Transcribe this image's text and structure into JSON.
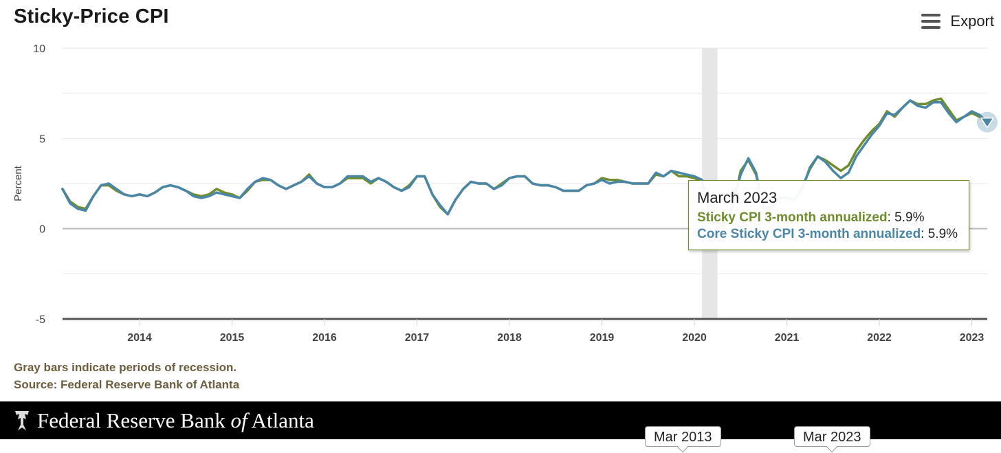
{
  "title": "Sticky-Price CPI",
  "export_label": "Export",
  "notes": {
    "recession": "Gray bars indicate periods of recession.",
    "source": "Source: Federal Reserve Bank of Atlanta"
  },
  "footer": {
    "bank_part1": "Federal Reserve Bank ",
    "bank_of": "of",
    "bank_part2": " Atlanta"
  },
  "navigator": {
    "start_label": "Mar 2013",
    "end_label": "Mar 2023"
  },
  "tooltip": {
    "title": "March 2023",
    "series1_name": "Sticky CPI 3-month annualized",
    "series1_value": "5.9%",
    "series2_name": "Core Sticky CPI 3-month annualized",
    "series2_value": "5.9%",
    "sep": ": "
  },
  "colors": {
    "series1": "#6f8d2d",
    "series2": "#4a86a6",
    "recession": "#e6e6e6"
  },
  "icons": {
    "export": "menu-icon",
    "marker": "triangle-down-icon",
    "logo": "eagle-icon"
  },
  "chart_data": {
    "type": "line",
    "ylabel": "Percent",
    "xlabel": "",
    "ylim": [
      -5,
      10
    ],
    "y_ticks": [
      10,
      5,
      0,
      -5
    ],
    "x_ticks": [
      "2014",
      "2015",
      "2016",
      "2017",
      "2018",
      "2019",
      "2020",
      "2021",
      "2022",
      "2023"
    ],
    "grid": true,
    "recession": {
      "start": "2020-02",
      "end": "2020-04"
    },
    "series": [
      {
        "name": "Sticky CPI 3-month annualized",
        "points": [
          [
            "2013-03",
            2.2
          ],
          [
            "2013-04",
            1.5
          ],
          [
            "2013-05",
            1.2
          ],
          [
            "2013-06",
            1.1
          ],
          [
            "2013-07",
            1.8
          ],
          [
            "2013-08",
            2.4
          ],
          [
            "2013-09",
            2.4
          ],
          [
            "2013-10",
            2.1
          ],
          [
            "2013-11",
            1.9
          ],
          [
            "2013-12",
            1.8
          ],
          [
            "2014-01",
            1.9
          ],
          [
            "2014-02",
            1.8
          ],
          [
            "2014-03",
            2.0
          ],
          [
            "2014-04",
            2.3
          ],
          [
            "2014-05",
            2.4
          ],
          [
            "2014-06",
            2.3
          ],
          [
            "2014-07",
            2.1
          ],
          [
            "2014-08",
            1.9
          ],
          [
            "2014-09",
            1.8
          ],
          [
            "2014-10",
            1.9
          ],
          [
            "2014-11",
            2.2
          ],
          [
            "2014-12",
            2.0
          ],
          [
            "2015-01",
            1.9
          ],
          [
            "2015-02",
            1.7
          ],
          [
            "2015-03",
            2.1
          ],
          [
            "2015-04",
            2.6
          ],
          [
            "2015-05",
            2.7
          ],
          [
            "2015-06",
            2.7
          ],
          [
            "2015-07",
            2.4
          ],
          [
            "2015-08",
            2.2
          ],
          [
            "2015-09",
            2.4
          ],
          [
            "2015-10",
            2.6
          ],
          [
            "2015-11",
            3.0
          ],
          [
            "2015-12",
            2.5
          ],
          [
            "2016-01",
            2.3
          ],
          [
            "2016-02",
            2.3
          ],
          [
            "2016-03",
            2.5
          ],
          [
            "2016-04",
            2.8
          ],
          [
            "2016-05",
            2.8
          ],
          [
            "2016-06",
            2.8
          ],
          [
            "2016-07",
            2.5
          ],
          [
            "2016-08",
            2.8
          ],
          [
            "2016-09",
            2.6
          ],
          [
            "2016-10",
            2.3
          ],
          [
            "2016-11",
            2.1
          ],
          [
            "2016-12",
            2.4
          ],
          [
            "2017-01",
            2.9
          ],
          [
            "2017-02",
            2.9
          ],
          [
            "2017-03",
            1.9
          ],
          [
            "2017-04",
            1.2
          ],
          [
            "2017-05",
            0.8
          ],
          [
            "2017-06",
            1.6
          ],
          [
            "2017-07",
            2.2
          ],
          [
            "2017-08",
            2.6
          ],
          [
            "2017-09",
            2.5
          ],
          [
            "2017-10",
            2.5
          ],
          [
            "2017-11",
            2.2
          ],
          [
            "2017-12",
            2.5
          ],
          [
            "2018-01",
            2.8
          ],
          [
            "2018-02",
            2.9
          ],
          [
            "2018-03",
            2.9
          ],
          [
            "2018-04",
            2.5
          ],
          [
            "2018-05",
            2.4
          ],
          [
            "2018-06",
            2.4
          ],
          [
            "2018-07",
            2.3
          ],
          [
            "2018-08",
            2.1
          ],
          [
            "2018-09",
            2.1
          ],
          [
            "2018-10",
            2.1
          ],
          [
            "2018-11",
            2.4
          ],
          [
            "2018-12",
            2.5
          ],
          [
            "2019-01",
            2.8
          ],
          [
            "2019-02",
            2.7
          ],
          [
            "2019-03",
            2.7
          ],
          [
            "2019-04",
            2.6
          ],
          [
            "2019-05",
            2.5
          ],
          [
            "2019-06",
            2.5
          ],
          [
            "2019-07",
            2.5
          ],
          [
            "2019-08",
            3.0
          ],
          [
            "2019-09",
            2.9
          ],
          [
            "2019-10",
            3.2
          ],
          [
            "2019-11",
            2.9
          ],
          [
            "2019-12",
            2.9
          ],
          [
            "2020-01",
            2.8
          ],
          [
            "2020-02",
            2.6
          ],
          [
            "2020-03",
            0.9
          ],
          [
            "2020-04",
            0.3
          ],
          [
            "2020-05",
            0.4
          ],
          [
            "2020-06",
            1.2
          ],
          [
            "2020-07",
            3.2
          ],
          [
            "2020-08",
            3.8
          ],
          [
            "2020-09",
            3.0
          ],
          [
            "2020-10",
            1.2
          ],
          [
            "2020-11",
            1.1
          ],
          [
            "2020-12",
            1.7
          ],
          [
            "2021-01",
            1.7
          ],
          [
            "2021-02",
            1.6
          ],
          [
            "2021-03",
            2.3
          ],
          [
            "2021-04",
            3.3
          ],
          [
            "2021-05",
            4.0
          ],
          [
            "2021-06",
            3.8
          ],
          [
            "2021-07",
            3.5
          ],
          [
            "2021-08",
            3.2
          ],
          [
            "2021-09",
            3.5
          ],
          [
            "2021-10",
            4.3
          ],
          [
            "2021-11",
            4.9
          ],
          [
            "2021-12",
            5.4
          ],
          [
            "2022-01",
            5.8
          ],
          [
            "2022-02",
            6.5
          ],
          [
            "2022-03",
            6.2
          ],
          [
            "2022-04",
            6.7
          ],
          [
            "2022-05",
            7.1
          ],
          [
            "2022-06",
            6.9
          ],
          [
            "2022-07",
            6.9
          ],
          [
            "2022-08",
            7.1
          ],
          [
            "2022-09",
            7.2
          ],
          [
            "2022-10",
            6.6
          ],
          [
            "2022-11",
            6.0
          ],
          [
            "2022-12",
            6.2
          ],
          [
            "2023-01",
            6.4
          ],
          [
            "2023-02",
            6.2
          ],
          [
            "2023-03",
            5.9
          ]
        ]
      },
      {
        "name": "Core Sticky CPI 3-month annualized",
        "points": [
          [
            "2013-03",
            2.2
          ],
          [
            "2013-04",
            1.4
          ],
          [
            "2013-05",
            1.1
          ],
          [
            "2013-06",
            1.0
          ],
          [
            "2013-07",
            1.8
          ],
          [
            "2013-08",
            2.4
          ],
          [
            "2013-09",
            2.5
          ],
          [
            "2013-10",
            2.2
          ],
          [
            "2013-11",
            1.9
          ],
          [
            "2013-12",
            1.8
          ],
          [
            "2014-01",
            1.9
          ],
          [
            "2014-02",
            1.8
          ],
          [
            "2014-03",
            2.0
          ],
          [
            "2014-04",
            2.3
          ],
          [
            "2014-05",
            2.4
          ],
          [
            "2014-06",
            2.3
          ],
          [
            "2014-07",
            2.1
          ],
          [
            "2014-08",
            1.8
          ],
          [
            "2014-09",
            1.7
          ],
          [
            "2014-10",
            1.8
          ],
          [
            "2014-11",
            2.0
          ],
          [
            "2014-12",
            1.9
          ],
          [
            "2015-01",
            1.8
          ],
          [
            "2015-02",
            1.7
          ],
          [
            "2015-03",
            2.2
          ],
          [
            "2015-04",
            2.6
          ],
          [
            "2015-05",
            2.8
          ],
          [
            "2015-06",
            2.7
          ],
          [
            "2015-07",
            2.4
          ],
          [
            "2015-08",
            2.2
          ],
          [
            "2015-09",
            2.4
          ],
          [
            "2015-10",
            2.6
          ],
          [
            "2015-11",
            2.9
          ],
          [
            "2015-12",
            2.5
          ],
          [
            "2016-01",
            2.3
          ],
          [
            "2016-02",
            2.3
          ],
          [
            "2016-03",
            2.5
          ],
          [
            "2016-04",
            2.9
          ],
          [
            "2016-05",
            2.9
          ],
          [
            "2016-06",
            2.9
          ],
          [
            "2016-07",
            2.6
          ],
          [
            "2016-08",
            2.8
          ],
          [
            "2016-09",
            2.6
          ],
          [
            "2016-10",
            2.3
          ],
          [
            "2016-11",
            2.1
          ],
          [
            "2016-12",
            2.3
          ],
          [
            "2017-01",
            2.9
          ],
          [
            "2017-02",
            2.9
          ],
          [
            "2017-03",
            1.9
          ],
          [
            "2017-04",
            1.3
          ],
          [
            "2017-05",
            0.8
          ],
          [
            "2017-06",
            1.6
          ],
          [
            "2017-07",
            2.2
          ],
          [
            "2017-08",
            2.6
          ],
          [
            "2017-09",
            2.5
          ],
          [
            "2017-10",
            2.5
          ],
          [
            "2017-11",
            2.2
          ],
          [
            "2017-12",
            2.4
          ],
          [
            "2018-01",
            2.8
          ],
          [
            "2018-02",
            2.9
          ],
          [
            "2018-03",
            2.9
          ],
          [
            "2018-04",
            2.5
          ],
          [
            "2018-05",
            2.4
          ],
          [
            "2018-06",
            2.4
          ],
          [
            "2018-07",
            2.3
          ],
          [
            "2018-08",
            2.1
          ],
          [
            "2018-09",
            2.1
          ],
          [
            "2018-10",
            2.1
          ],
          [
            "2018-11",
            2.4
          ],
          [
            "2018-12",
            2.5
          ],
          [
            "2019-01",
            2.7
          ],
          [
            "2019-02",
            2.5
          ],
          [
            "2019-03",
            2.6
          ],
          [
            "2019-04",
            2.6
          ],
          [
            "2019-05",
            2.5
          ],
          [
            "2019-06",
            2.5
          ],
          [
            "2019-07",
            2.5
          ],
          [
            "2019-08",
            3.1
          ],
          [
            "2019-09",
            2.9
          ],
          [
            "2019-10",
            3.2
          ],
          [
            "2019-11",
            3.1
          ],
          [
            "2019-12",
            3.0
          ],
          [
            "2020-01",
            2.9
          ],
          [
            "2020-02",
            2.7
          ],
          [
            "2020-03",
            0.8
          ],
          [
            "2020-04",
            0.0
          ],
          [
            "2020-05",
            0.3
          ],
          [
            "2020-06",
            1.3
          ],
          [
            "2020-07",
            3.0
          ],
          [
            "2020-08",
            3.9
          ],
          [
            "2020-09",
            3.1
          ],
          [
            "2020-10",
            1.1
          ],
          [
            "2020-11",
            1.2
          ],
          [
            "2020-12",
            1.7
          ],
          [
            "2021-01",
            1.7
          ],
          [
            "2021-02",
            1.6
          ],
          [
            "2021-03",
            2.2
          ],
          [
            "2021-04",
            3.4
          ],
          [
            "2021-05",
            4.0
          ],
          [
            "2021-06",
            3.7
          ],
          [
            "2021-07",
            3.2
          ],
          [
            "2021-08",
            2.8
          ],
          [
            "2021-09",
            3.1
          ],
          [
            "2021-10",
            4.0
          ],
          [
            "2021-11",
            4.6
          ],
          [
            "2021-12",
            5.2
          ],
          [
            "2022-01",
            5.7
          ],
          [
            "2022-02",
            6.4
          ],
          [
            "2022-03",
            6.3
          ],
          [
            "2022-04",
            6.7
          ],
          [
            "2022-05",
            7.1
          ],
          [
            "2022-06",
            6.8
          ],
          [
            "2022-07",
            6.7
          ],
          [
            "2022-08",
            7.0
          ],
          [
            "2022-09",
            7.0
          ],
          [
            "2022-10",
            6.4
          ],
          [
            "2022-11",
            5.9
          ],
          [
            "2022-12",
            6.2
          ],
          [
            "2023-01",
            6.5
          ],
          [
            "2023-02",
            6.3
          ],
          [
            "2023-03",
            5.9
          ]
        ]
      }
    ]
  }
}
